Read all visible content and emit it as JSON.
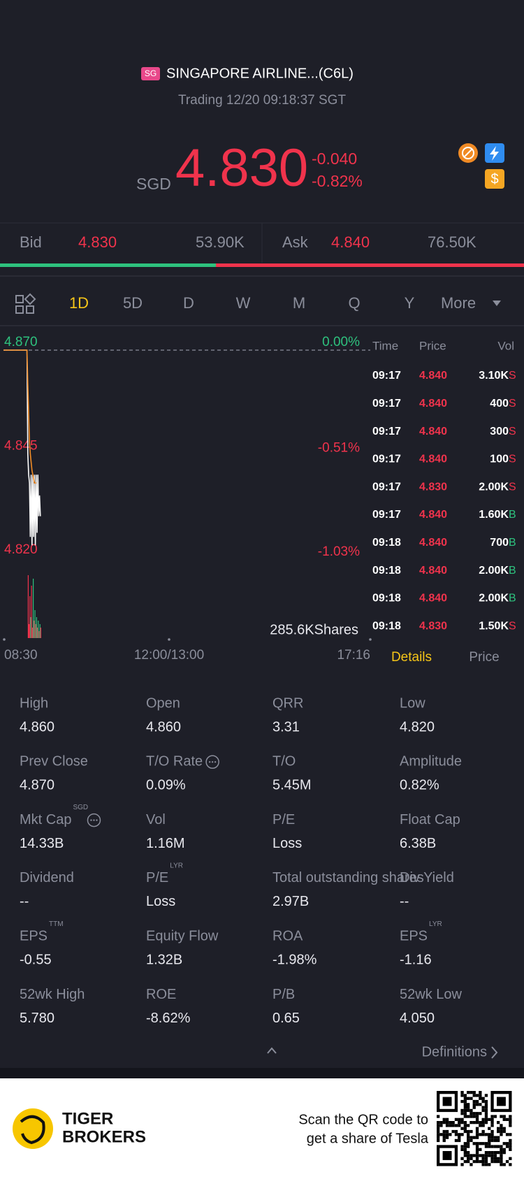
{
  "header": {
    "market_badge": "SG",
    "name": "SINGAPORE AIRLINE...(C6L)",
    "status": "Trading 12/20 09:18:37 SGT"
  },
  "quote": {
    "currency": "SGD",
    "price": "4.830",
    "change": "-0.040",
    "change_pct": "-0.82%"
  },
  "depth": {
    "bid_label": "Bid",
    "bid_price": "4.830",
    "bid_size": "53.90K",
    "ask_label": "Ask",
    "ask_price": "4.840",
    "ask_size": "76.50K"
  },
  "tabs": [
    "1D",
    "5D",
    "D",
    "W",
    "M",
    "Q",
    "Y",
    "More"
  ],
  "chart": {
    "type": "line",
    "ylim": [
      4.82,
      4.87
    ],
    "yticks": [
      {
        "value": 4.87,
        "label": "4.870"
      },
      {
        "value": 4.845,
        "label": "4.845"
      },
      {
        "value": 4.82,
        "label": "4.820"
      }
    ],
    "right_labels": [
      "0.00%",
      "-0.51%",
      "-1.03%"
    ],
    "x_labels": [
      "08:30",
      "12:00/13:00",
      "17:16"
    ],
    "volume_label": "285.6KShares",
    "series": [
      {
        "color": "#ffffff",
        "values": [
          4.87,
          4.87,
          4.87,
          4.87,
          4.87,
          4.87,
          4.87,
          4.87,
          4.87,
          4.87,
          4.87,
          4.87,
          4.87,
          4.87,
          4.87,
          4.87,
          4.87,
          4.87,
          4.87,
          4.87,
          4.87,
          4.87,
          4.87,
          4.87,
          4.87,
          4.87,
          4.87,
          4.87,
          4.87,
          4.845,
          4.84,
          4.838,
          4.825,
          4.84,
          4.823,
          4.84,
          4.825,
          4.84,
          4.823,
          4.84,
          4.826,
          4.84,
          4.83,
          4.835,
          4.83
        ]
      },
      {
        "color": "#f08a24",
        "values": [
          4.87,
          4.87,
          4.87,
          4.87,
          4.87,
          4.87,
          4.87,
          4.87,
          4.87,
          4.87,
          4.87,
          4.87,
          4.87,
          4.87,
          4.87,
          4.87,
          4.87,
          4.87,
          4.87,
          4.87,
          4.87,
          4.87,
          4.87,
          4.87,
          4.87,
          4.87,
          4.87,
          4.87,
          4.87,
          4.862,
          4.855,
          4.848,
          4.845,
          4.843,
          4.841,
          4.84,
          4.839,
          4.838,
          4.838,
          4.838
        ]
      }
    ],
    "volume": {
      "values": [
        90,
        20,
        60,
        30,
        75,
        15,
        85,
        25,
        40,
        20,
        30,
        15,
        25,
        10,
        20,
        15
      ],
      "colors": [
        "#f0334c",
        "#f0334c",
        "#f0334c",
        "#2ec27e",
        "#f0334c",
        "#f0334c",
        "#2ec27e",
        "#f0334c",
        "#2ec27e",
        "#f0334c",
        "#2ec27e",
        "#f0334c",
        "#2ec27e",
        "#f0334c",
        "#2ec27e",
        "#f0334c"
      ]
    }
  },
  "trades": {
    "header": [
      "Time",
      "Price",
      "Vol"
    ],
    "rows": [
      [
        "09:17",
        "4.840",
        "3.10K",
        "S"
      ],
      [
        "09:17",
        "4.840",
        "400",
        "S"
      ],
      [
        "09:17",
        "4.840",
        "300",
        "S"
      ],
      [
        "09:17",
        "4.840",
        "100",
        "S"
      ],
      [
        "09:17",
        "4.830",
        "2.00K",
        "S"
      ],
      [
        "09:17",
        "4.840",
        "1.60K",
        "B"
      ],
      [
        "09:18",
        "4.840",
        "700",
        "B"
      ],
      [
        "09:18",
        "4.840",
        "2.00K",
        "B"
      ],
      [
        "09:18",
        "4.840",
        "2.00K",
        "B"
      ],
      [
        "09:18",
        "4.830",
        "1.50K",
        "S"
      ]
    ]
  },
  "detail_tabs": [
    "Details",
    "Price"
  ],
  "stats": [
    {
      "label": "High",
      "value": "4.860"
    },
    {
      "label": "Open",
      "value": "4.860"
    },
    {
      "label": "QRR",
      "value": "3.31"
    },
    {
      "label": "Low",
      "value": "4.820"
    },
    {
      "label": "Prev Close",
      "value": "4.870"
    },
    {
      "label": "T/O Rate",
      "value": "0.09%"
    },
    {
      "label": "T/O",
      "value": "5.45M"
    },
    {
      "label": "Amplitude",
      "value": "0.82%"
    },
    {
      "label": "Mkt Cap",
      "sup": "SGD",
      "value": "14.33B"
    },
    {
      "label": "Vol",
      "value": "1.16M"
    },
    {
      "label": "P/E",
      "value": "Loss"
    },
    {
      "label": "Float Cap",
      "value": "6.38B"
    },
    {
      "label": "Dividend",
      "value": "--"
    },
    {
      "label": "P/E",
      "sup": "LYR",
      "value": "Loss"
    },
    {
      "label": "Total outstanding shares",
      "value": "2.97B"
    },
    {
      "label": "Div Yield",
      "value": "--"
    },
    {
      "label": "EPS",
      "sup": "TTM",
      "value": "-0.55"
    },
    {
      "label": "Equity Flow",
      "value": "1.32B"
    },
    {
      "label": "ROA",
      "value": "-1.98%"
    },
    {
      "label": "EPS",
      "sup": "LYR",
      "value": "-1.16"
    },
    {
      "label": "52wk High",
      "value": "5.780"
    },
    {
      "label": "ROE",
      "value": "-8.62%"
    },
    {
      "label": "P/B",
      "value": "0.65"
    },
    {
      "label": "52wk Low",
      "value": "4.050"
    }
  ],
  "definitions": "Definitions",
  "footer": {
    "brand": [
      "TIGER",
      "BROKERS"
    ],
    "cta": [
      "Scan the QR code to",
      "get a share of Tesla"
    ]
  }
}
